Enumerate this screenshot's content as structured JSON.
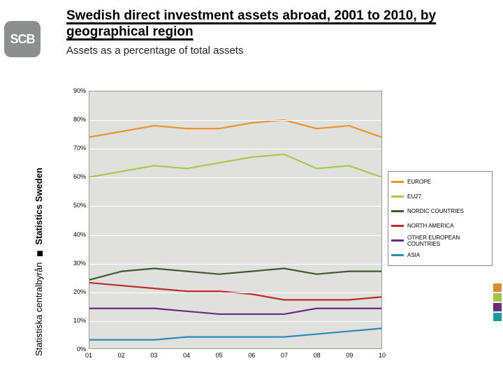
{
  "logo_text": "SCB",
  "rail_text_se": "Statistiska centralbyrån",
  "rail_text_en": "Statistics Sweden",
  "title": "Swedish direct investment assets abroad, 2001 to 2010, by geographical region",
  "subtitle": "Assets as a percentage of total assets",
  "color_squares": [
    "#d98b2e",
    "#a3c24a",
    "#662e7a",
    "#1a9b9b"
  ],
  "chart": {
    "type": "line",
    "background_color": "#e0e0df",
    "grid_color": "#ffffff",
    "border_color": "#9a9a98",
    "x_categories": [
      "01",
      "02",
      "03",
      "04",
      "05",
      "06",
      "07",
      "08",
      "09",
      "10"
    ],
    "ylim": [
      0,
      90
    ],
    "ytick_step": 10,
    "y_format": "pct",
    "label_fontsize": 9,
    "line_width": 2.2,
    "series": [
      {
        "name": "EUROPE",
        "color": "#e8962b",
        "values": [
          74,
          76,
          78,
          77,
          77,
          79,
          80,
          77,
          78,
          74
        ]
      },
      {
        "name": "EU27",
        "color": "#a7c94e",
        "values": [
          60,
          62,
          64,
          63,
          65,
          67,
          68,
          63,
          64,
          60
        ]
      },
      {
        "name": "NORDIC COUNTRIES",
        "color": "#3e5b2f",
        "values": [
          24,
          27,
          28,
          27,
          26,
          27,
          28,
          26,
          27,
          27
        ]
      },
      {
        "name": "NORTH AMERICA",
        "color": "#c02a2a",
        "values": [
          23,
          22,
          21,
          20,
          20,
          19,
          17,
          17,
          17,
          18
        ]
      },
      {
        "name": "OTHER EUROPEAN COUNTRIES",
        "color": "#662e7a",
        "values": [
          14,
          14,
          14,
          13,
          12,
          12,
          12,
          14,
          14,
          14
        ]
      },
      {
        "name": "ASIA",
        "color": "#2b8bb8",
        "values": [
          3,
          3,
          3,
          4,
          4,
          4,
          4,
          5,
          6,
          7
        ]
      }
    ]
  }
}
